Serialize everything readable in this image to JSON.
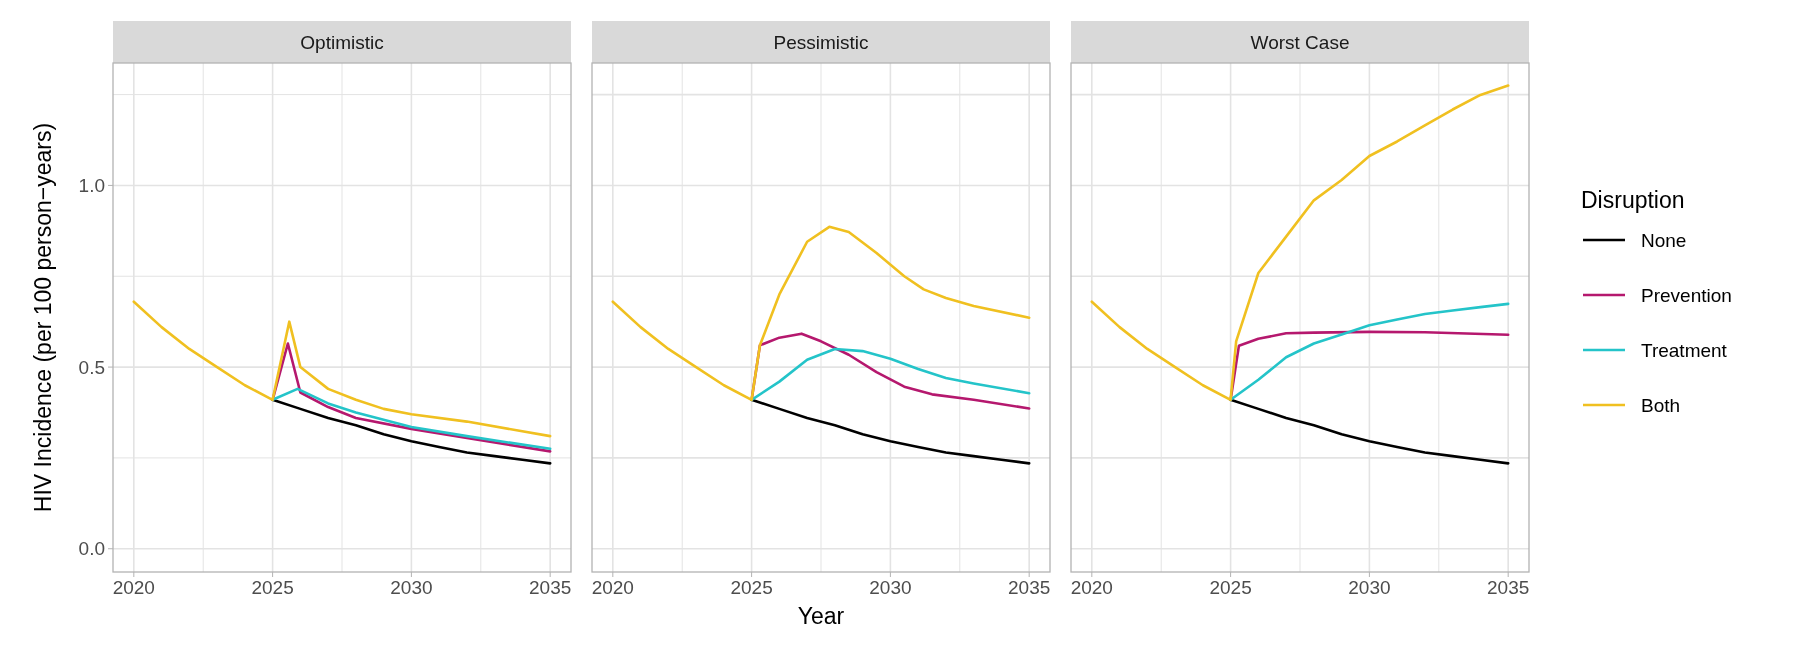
{
  "chart_data": [
    {
      "type": "line",
      "title": "Optimistic",
      "ylabel": "HIV Incidence (per 100 person−years)",
      "xlim": [
        2019.25,
        2035.75
      ],
      "ylim": [
        -0.064,
        1.337
      ],
      "xticks": [
        2020,
        {
          "value": 2022.5,
          "label": null
        },
        2025,
        {
          "value": 2027.5,
          "label": null
        },
        2030,
        {
          "value": 2032.5,
          "label": null
        },
        2035
      ],
      "yticks": [
        {
          "value": 0,
          "label": "0.0"
        },
        {
          "value": 0.25,
          "label": null
        },
        {
          "value": 0.5,
          "label": "0.5"
        },
        {
          "value": 0.75,
          "label": null
        },
        {
          "value": 1,
          "label": "1.0"
        },
        {
          "value": 1.25,
          "label": null
        }
      ],
      "grid": true,
      "legend": false,
      "series": [
        {
          "color": "#000000",
          "x": [
            2025,
            2026,
            2027,
            2028,
            2029,
            2030,
            2031,
            2032,
            2033,
            2034,
            2035
          ],
          "values": [
            0.41,
            0.385,
            0.36,
            0.34,
            0.315,
            0.296,
            0.28,
            0.265,
            0.255,
            0.245,
            0.235
          ]
        },
        {
          "color": "#b5186e",
          "x": [
            2025,
            2025.55,
            2026,
            2027,
            2028,
            2030,
            2032,
            2035
          ],
          "values": [
            0.41,
            0.565,
            0.43,
            0.39,
            0.36,
            0.33,
            0.305,
            0.268
          ]
        },
        {
          "color": "#24c4c9",
          "x": [
            2025,
            2025.9,
            2027,
            2028,
            2030,
            2032,
            2035
          ],
          "values": [
            0.41,
            0.44,
            0.4,
            0.375,
            0.335,
            0.31,
            0.275
          ]
        },
        {
          "color": "#f0c020",
          "x": [
            2020,
            2021,
            2022,
            2023,
            2024,
            2025,
            2025.6,
            2026,
            2027,
            2028,
            2029,
            2030,
            2032,
            2035
          ],
          "values": [
            0.68,
            0.61,
            0.55,
            0.5,
            0.45,
            0.41,
            0.625,
            0.5,
            0.44,
            0.41,
            0.385,
            0.37,
            0.35,
            0.31
          ]
        }
      ]
    },
    {
      "type": "line",
      "title": "Pessimistic",
      "xlabel": "Year",
      "xlim": [
        2019.25,
        2035.75
      ],
      "ylim": [
        -0.064,
        1.337
      ],
      "xticks": [
        2020,
        {
          "value": 2022.5,
          "label": null
        },
        2025,
        {
          "value": 2027.5,
          "label": null
        },
        2030,
        {
          "value": 2032.5,
          "label": null
        },
        2035
      ],
      "yticks": [
        0,
        0.25,
        0.5,
        0.75,
        1,
        1.25
      ],
      "tick_labels": "x",
      "grid": true,
      "legend": false,
      "series": [
        {
          "color": "#000000",
          "x": [
            2025,
            2026,
            2027,
            2028,
            2029,
            2030,
            2031,
            2032,
            2033,
            2034,
            2035
          ],
          "values": [
            0.41,
            0.385,
            0.36,
            0.34,
            0.315,
            0.296,
            0.28,
            0.265,
            0.255,
            0.245,
            0.235
          ]
        },
        {
          "color": "#b5186e",
          "x": [
            2025,
            2025.3,
            2026,
            2026.8,
            2027.5,
            2028.5,
            2029.5,
            2030.5,
            2031.5,
            2033,
            2035
          ],
          "values": [
            0.41,
            0.56,
            0.581,
            0.592,
            0.571,
            0.534,
            0.486,
            0.446,
            0.425,
            0.41,
            0.386
          ]
        },
        {
          "color": "#24c4c9",
          "x": [
            2025,
            2026,
            2027,
            2028,
            2029,
            2030,
            2031,
            2032,
            2033,
            2035
          ],
          "values": [
            0.41,
            0.46,
            0.52,
            0.55,
            0.544,
            0.523,
            0.495,
            0.47,
            0.455,
            0.428
          ]
        },
        {
          "color": "#f0c020",
          "x": [
            2020,
            2021,
            2022,
            2023,
            2024,
            2025,
            2025.3,
            2026,
            2027,
            2027.8,
            2028.5,
            2029.5,
            2030.5,
            2031.2,
            2032,
            2033,
            2035
          ],
          "values": [
            0.68,
            0.61,
            0.55,
            0.5,
            0.45,
            0.41,
            0.56,
            0.7,
            0.845,
            0.886,
            0.872,
            0.814,
            0.75,
            0.714,
            0.69,
            0.668,
            0.636
          ]
        }
      ]
    },
    {
      "type": "line",
      "title": "Worst Case",
      "legend_title": "Disruption",
      "xlim": [
        2019.25,
        2035.75
      ],
      "ylim": [
        -0.064,
        1.337
      ],
      "xticks": [
        2020,
        {
          "value": 2022.5,
          "label": null
        },
        2025,
        {
          "value": 2027.5,
          "label": null
        },
        2030,
        {
          "value": 2032.5,
          "label": null
        },
        2035
      ],
      "yticks": [
        0,
        0.25,
        0.5,
        0.75,
        1,
        1.25
      ],
      "tick_labels": "x",
      "grid": true,
      "legend": "right",
      "series": [
        {
          "name": "None",
          "color": "#000000",
          "x": [
            2025,
            2026,
            2027,
            2028,
            2029,
            2030,
            2031,
            2032,
            2033,
            2034,
            2035
          ],
          "values": [
            0.41,
            0.385,
            0.36,
            0.34,
            0.315,
            0.296,
            0.28,
            0.265,
            0.255,
            0.245,
            0.235
          ]
        },
        {
          "name": "Prevention",
          "color": "#b5186e",
          "x": [
            2025,
            2025.3,
            2026,
            2027,
            2028,
            2030,
            2032,
            2035
          ],
          "values": [
            0.41,
            0.559,
            0.578,
            0.593,
            0.595,
            0.597,
            0.596,
            0.589
          ]
        },
        {
          "name": "Treatment",
          "color": "#24c4c9",
          "x": [
            2025,
            2026,
            2027,
            2028,
            2029,
            2030,
            2031,
            2032,
            2033,
            2034,
            2035
          ],
          "values": [
            0.41,
            0.465,
            0.527,
            0.565,
            0.59,
            0.615,
            0.631,
            0.646,
            0.656,
            0.665,
            0.674
          ]
        },
        {
          "name": "Both",
          "color": "#f0c020",
          "x": [
            2020,
            2021,
            2022,
            2023,
            2024,
            2025,
            2025.2,
            2026,
            2027,
            2028,
            2029,
            2030,
            2031,
            2032,
            2033,
            2034,
            2035
          ],
          "values": [
            0.68,
            0.61,
            0.55,
            0.5,
            0.45,
            0.41,
            0.571,
            0.759,
            0.859,
            0.959,
            1.015,
            1.081,
            1.121,
            1.165,
            1.209,
            1.249,
            1.275
          ]
        }
      ]
    }
  ]
}
